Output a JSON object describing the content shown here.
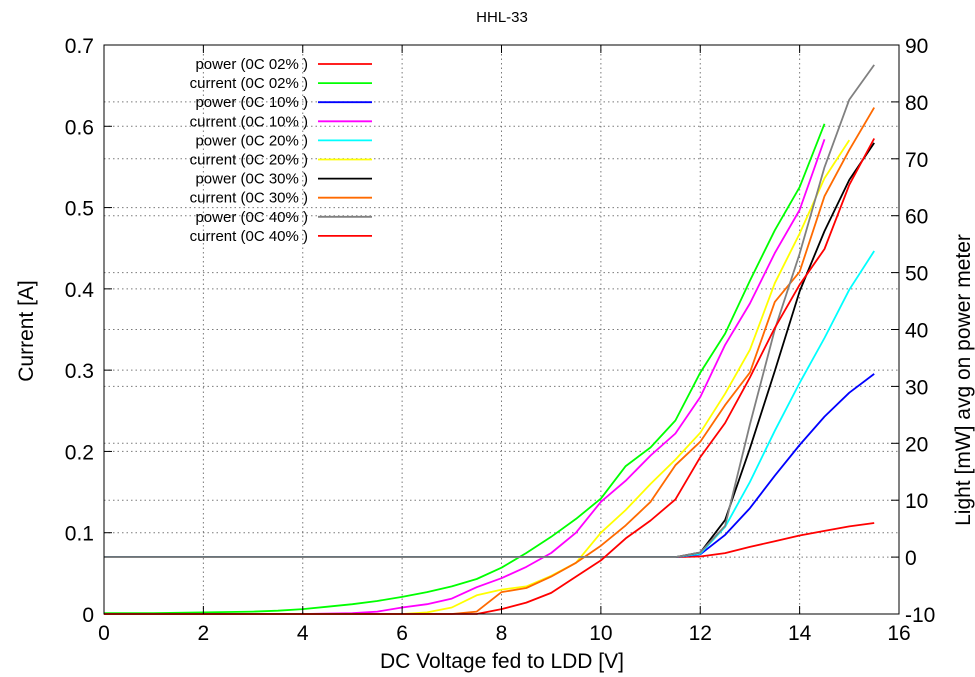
{
  "chart_data": {
    "type": "line",
    "title": "HHL-33",
    "xlabel": "DC Voltage fed to LDD [V]",
    "ylabel": "Current [A]",
    "y2label": "Light [mW] avg on power meter",
    "xlim": [
      0,
      16
    ],
    "ylim": [
      0,
      0.7
    ],
    "y2lim": [
      -10,
      90
    ],
    "grid": true,
    "legend_position": "top-left",
    "x_ticks": [
      "0",
      "2",
      "4",
      "6",
      "8",
      "10",
      "12",
      "14",
      "16"
    ],
    "y_ticks": [
      "0",
      "0.1",
      "0.2",
      "0.3",
      "0.4",
      "0.5",
      "0.6",
      "0.7"
    ],
    "y2_ticks": [
      "-10",
      "0",
      "10",
      "20",
      "30",
      "40",
      "50",
      "60",
      "70",
      "80",
      "90"
    ],
    "series": [
      {
        "name": "power (0C 02% )",
        "axis": "y2",
        "color": "#ff0000",
        "points": [
          [
            0,
            0
          ],
          [
            2,
            0
          ],
          [
            4,
            0
          ],
          [
            6,
            0
          ],
          [
            8,
            0
          ],
          [
            10,
            0
          ],
          [
            11.5,
            0
          ],
          [
            12,
            0.1
          ],
          [
            12.5,
            0.7
          ],
          [
            13,
            1.8
          ],
          [
            13.5,
            2.8
          ],
          [
            14,
            3.8
          ],
          [
            14.5,
            4.6
          ],
          [
            15,
            5.4
          ],
          [
            15.5,
            6.0
          ]
        ]
      },
      {
        "name": "current (0C 02% )",
        "axis": "y",
        "color": "#00ff00",
        "points": [
          [
            0,
            0.001
          ],
          [
            1,
            0.001
          ],
          [
            2,
            0.002
          ],
          [
            3,
            0.003
          ],
          [
            3.5,
            0.004
          ],
          [
            4,
            0.006
          ],
          [
            4.5,
            0.009
          ],
          [
            5,
            0.012
          ],
          [
            5.5,
            0.016
          ],
          [
            6,
            0.021
          ],
          [
            6.5,
            0.027
          ],
          [
            7,
            0.034
          ],
          [
            7.5,
            0.043
          ],
          [
            8,
            0.057
          ],
          [
            8.5,
            0.075
          ],
          [
            9,
            0.095
          ],
          [
            9.5,
            0.117
          ],
          [
            10,
            0.142
          ],
          [
            10.5,
            0.182
          ],
          [
            11,
            0.205
          ],
          [
            11.5,
            0.238
          ],
          [
            12,
            0.297
          ],
          [
            12.5,
            0.345
          ],
          [
            13,
            0.41
          ],
          [
            13.5,
            0.472
          ],
          [
            14,
            0.525
          ],
          [
            14.5,
            0.603
          ]
        ]
      },
      {
        "name": "power (0C 10% )",
        "axis": "y2",
        "color": "#0000ff",
        "points": [
          [
            0,
            0
          ],
          [
            2,
            0
          ],
          [
            4,
            0
          ],
          [
            6,
            0
          ],
          [
            8,
            0
          ],
          [
            10,
            0
          ],
          [
            11.5,
            0
          ],
          [
            12,
            0.5
          ],
          [
            12.5,
            3.9
          ],
          [
            13,
            8.6
          ],
          [
            13.5,
            14.3
          ],
          [
            14,
            19.7
          ],
          [
            14.5,
            24.7
          ],
          [
            15,
            28.9
          ],
          [
            15.5,
            32.2
          ]
        ]
      },
      {
        "name": "current (0C 10% )",
        "axis": "y",
        "color": "#ff00ff",
        "points": [
          [
            0,
            0
          ],
          [
            4,
            0
          ],
          [
            5,
            0.001
          ],
          [
            5.5,
            0.003
          ],
          [
            6,
            0.008
          ],
          [
            6.5,
            0.012
          ],
          [
            7,
            0.019
          ],
          [
            7.5,
            0.033
          ],
          [
            8,
            0.044
          ],
          [
            8.5,
            0.058
          ],
          [
            9,
            0.075
          ],
          [
            9.5,
            0.1
          ],
          [
            10,
            0.138
          ],
          [
            10.5,
            0.164
          ],
          [
            11,
            0.195
          ],
          [
            11.5,
            0.222
          ],
          [
            12,
            0.267
          ],
          [
            12.5,
            0.331
          ],
          [
            13,
            0.382
          ],
          [
            13.5,
            0.444
          ],
          [
            14,
            0.497
          ],
          [
            14.5,
            0.584
          ]
        ]
      },
      {
        "name": "power (0C 20% )",
        "axis": "y2",
        "color": "#00ffff",
        "points": [
          [
            0,
            0
          ],
          [
            2,
            0
          ],
          [
            4,
            0
          ],
          [
            6,
            0
          ],
          [
            8,
            0
          ],
          [
            10,
            0
          ],
          [
            11.5,
            0
          ],
          [
            12,
            0.6
          ],
          [
            12.5,
            5.3
          ],
          [
            13,
            13.2
          ],
          [
            13.5,
            22.2
          ],
          [
            14,
            30.6
          ],
          [
            14.5,
            38.5
          ],
          [
            15,
            47.0
          ],
          [
            15.5,
            53.8
          ]
        ]
      },
      {
        "name": "current (0C 20% )",
        "axis": "y",
        "color": "#ffff00",
        "points": [
          [
            0,
            0
          ],
          [
            4,
            0
          ],
          [
            6,
            0
          ],
          [
            6.5,
            0.002
          ],
          [
            7,
            0.008
          ],
          [
            7.5,
            0.023
          ],
          [
            8,
            0.03
          ],
          [
            8.5,
            0.034
          ],
          [
            9,
            0.047
          ],
          [
            9.5,
            0.063
          ],
          [
            10,
            0.1
          ],
          [
            10.5,
            0.128
          ],
          [
            11,
            0.16
          ],
          [
            11.5,
            0.19
          ],
          [
            12,
            0.223
          ],
          [
            12.5,
            0.271
          ],
          [
            13,
            0.325
          ],
          [
            13.5,
            0.407
          ],
          [
            14,
            0.468
          ],
          [
            14.5,
            0.536
          ],
          [
            15,
            0.583
          ]
        ]
      },
      {
        "name": "power (0C 30% )",
        "axis": "y2",
        "color": "#000000",
        "points": [
          [
            0,
            0
          ],
          [
            2,
            0
          ],
          [
            4,
            0
          ],
          [
            6,
            0
          ],
          [
            8,
            0
          ],
          [
            10,
            0
          ],
          [
            11.5,
            0
          ],
          [
            12,
            0.8
          ],
          [
            12.5,
            6.5
          ],
          [
            13,
            19.1
          ],
          [
            13.5,
            32.7
          ],
          [
            14,
            46.7
          ],
          [
            14.5,
            57.3
          ],
          [
            15,
            66.3
          ],
          [
            15.5,
            72.8
          ]
        ]
      },
      {
        "name": "current (0C 30% )",
        "axis": "y",
        "color": "#ff6a00",
        "points": [
          [
            0,
            0
          ],
          [
            6,
            0
          ],
          [
            7,
            0
          ],
          [
            7.5,
            0.003
          ],
          [
            8,
            0.027
          ],
          [
            8.5,
            0.032
          ],
          [
            9,
            0.046
          ],
          [
            9.5,
            0.063
          ],
          [
            10,
            0.084
          ],
          [
            10.5,
            0.109
          ],
          [
            11,
            0.138
          ],
          [
            11.5,
            0.183
          ],
          [
            12,
            0.212
          ],
          [
            12.5,
            0.257
          ],
          [
            13,
            0.297
          ],
          [
            13.5,
            0.384
          ],
          [
            14,
            0.421
          ],
          [
            14.5,
            0.514
          ],
          [
            15,
            0.571
          ],
          [
            15.5,
            0.623
          ]
        ]
      },
      {
        "name": "power (0C 40% )",
        "axis": "y2",
        "color": "#808080",
        "points": [
          [
            0,
            0
          ],
          [
            2,
            0
          ],
          [
            4,
            0
          ],
          [
            6,
            0
          ],
          [
            8,
            0
          ],
          [
            10,
            0
          ],
          [
            11.5,
            0
          ],
          [
            12,
            0.8
          ],
          [
            12.5,
            5.5
          ],
          [
            13,
            23.3
          ],
          [
            13.5,
            40.0
          ],
          [
            14,
            53.3
          ],
          [
            14.5,
            68.5
          ],
          [
            15,
            80.4
          ],
          [
            15.5,
            86.5
          ]
        ]
      },
      {
        "name": "current (0C 40% )",
        "axis": "y",
        "color": "#ff0000",
        "points": [
          [
            0,
            0
          ],
          [
            7,
            0
          ],
          [
            7.5,
            0
          ],
          [
            8,
            0.006
          ],
          [
            8.5,
            0.014
          ],
          [
            9,
            0.026
          ],
          [
            9.5,
            0.046
          ],
          [
            10,
            0.066
          ],
          [
            10.5,
            0.093
          ],
          [
            11,
            0.115
          ],
          [
            11.5,
            0.141
          ],
          [
            12,
            0.193
          ],
          [
            12.5,
            0.235
          ],
          [
            13,
            0.291
          ],
          [
            13.5,
            0.352
          ],
          [
            14,
            0.405
          ],
          [
            14.5,
            0.449
          ],
          [
            15,
            0.528
          ],
          [
            15.5,
            0.585
          ]
        ]
      }
    ]
  }
}
